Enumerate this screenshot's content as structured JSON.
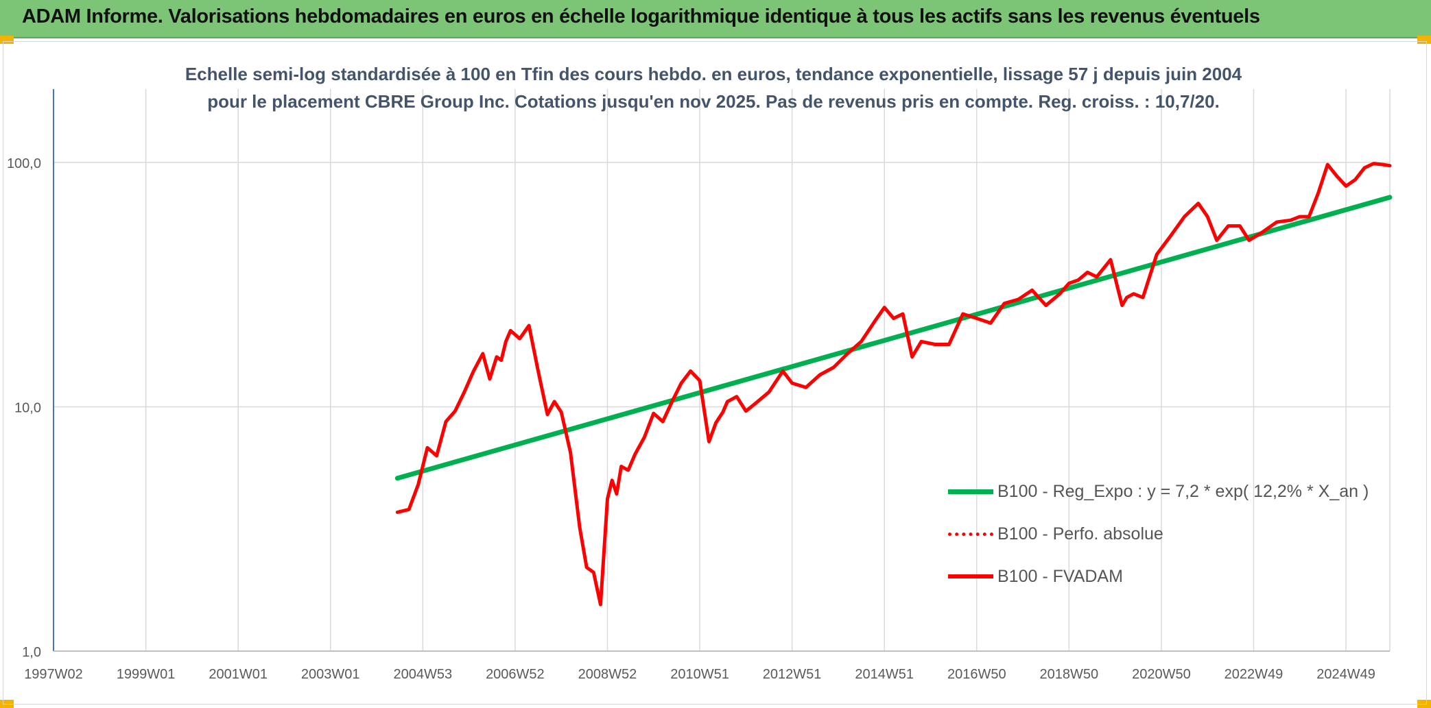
{
  "header": {
    "title": "ADAM Informe. Valorisations hebdomadaires en euros en échelle logarithmique identique à tous les actifs sans les revenus éventuels"
  },
  "chart_data": {
    "type": "line",
    "subtitle": "Echelle semi-log standardisée à 100 en Tfin des cours hebdo. en euros, tendance exponentielle, lissage 57 j depuis juin 2004 pour le placement CBRE Group Inc. Cotations jusqu'en nov 2025. Pas de revenus pris en compte. Reg. croiss. : 10,7/20.",
    "y_scale": "log",
    "ylim": [
      1,
      200
    ],
    "y_tick_values": [
      1,
      10,
      100
    ],
    "y_tick_labels": [
      "1,0",
      "10,0",
      "100,0"
    ],
    "xlim": [
      1997.0,
      2025.95
    ],
    "x_tick_values": [
      1997.0,
      1999.0,
      2001.0,
      2003.0,
      2005.0,
      2007.0,
      2009.0,
      2011.0,
      2013.0,
      2015.0,
      2017.0,
      2019.0,
      2021.0,
      2023.0,
      2025.0
    ],
    "x_tick_labels": [
      "1997W02",
      "1999W01",
      "2001W01",
      "2003W01",
      "2004W53",
      "2006W52",
      "2008W52",
      "2010W51",
      "2012W51",
      "2014W51",
      "2016W50",
      "2018W50",
      "2020W50",
      "2022W49",
      "2024W49"
    ],
    "grid": true,
    "legend_position": "bottom-right",
    "series": [
      {
        "name": "B100 - Reg_Expo : y = 7,2 * exp( 12,2% *  X_an )",
        "color": "#00b050",
        "style": "solid",
        "x": [
          2004.45,
          2025.95
        ],
        "y": [
          5.1,
          72
        ]
      },
      {
        "name": "B100 - Perfo. absolue",
        "color": "#ff0000",
        "style": "dotted",
        "x": [],
        "y": []
      },
      {
        "name": "B100 - FVADAM",
        "color": "#ff0000",
        "style": "solid",
        "x": [
          2004.45,
          2004.7,
          2004.9,
          2005.1,
          2005.3,
          2005.5,
          2005.7,
          2005.9,
          2006.1,
          2006.3,
          2006.45,
          2006.6,
          2006.7,
          2006.8,
          2006.9,
          2007.1,
          2007.3,
          2007.5,
          2007.7,
          2007.85,
          2008.0,
          2008.2,
          2008.4,
          2008.55,
          2008.7,
          2008.85,
          2009.0,
          2009.1,
          2009.2,
          2009.3,
          2009.45,
          2009.6,
          2009.8,
          2010.0,
          2010.2,
          2010.4,
          2010.6,
          2010.8,
          2011.0,
          2011.2,
          2011.35,
          2011.5,
          2011.6,
          2011.8,
          2012.0,
          2012.2,
          2012.5,
          2012.8,
          2013.0,
          2013.3,
          2013.6,
          2013.9,
          2014.2,
          2014.5,
          2014.8,
          2015.0,
          2015.2,
          2015.4,
          2015.6,
          2015.8,
          2016.1,
          2016.4,
          2016.7,
          2017.0,
          2017.3,
          2017.6,
          2017.9,
          2018.2,
          2018.5,
          2018.8,
          2019.0,
          2019.2,
          2019.4,
          2019.6,
          2019.9,
          2020.15,
          2020.25,
          2020.4,
          2020.6,
          2020.9,
          2021.2,
          2021.5,
          2021.8,
          2022.0,
          2022.2,
          2022.45,
          2022.7,
          2022.9,
          2023.2,
          2023.5,
          2023.8,
          2024.0,
          2024.2,
          2024.4,
          2024.6,
          2024.8,
          2025.0,
          2025.2,
          2025.4,
          2025.6,
          2025.8,
          2025.95
        ],
        "y": [
          3.7,
          3.8,
          4.8,
          6.8,
          6.3,
          8.7,
          9.6,
          11.5,
          14.0,
          16.5,
          13.0,
          16.0,
          15.5,
          18.5,
          20.5,
          19.0,
          21.5,
          14.0,
          9.3,
          10.5,
          9.5,
          6.5,
          3.2,
          2.2,
          2.1,
          1.55,
          4.2,
          5.0,
          4.4,
          5.7,
          5.5,
          6.4,
          7.5,
          9.4,
          8.7,
          10.5,
          12.5,
          14.0,
          12.8,
          7.2,
          8.6,
          9.5,
          10.5,
          11.0,
          9.6,
          10.3,
          11.5,
          14.0,
          12.5,
          12.0,
          13.5,
          14.5,
          16.5,
          18.5,
          22.5,
          25.5,
          23.0,
          24.0,
          16.0,
          18.5,
          18.0,
          18.0,
          24.0,
          23.0,
          22.0,
          26.5,
          27.5,
          30.0,
          26.0,
          29.0,
          32.0,
          33.0,
          35.5,
          34.0,
          40.0,
          26.0,
          28.0,
          29.0,
          28.0,
          42.0,
          50.0,
          60.0,
          68.0,
          60.0,
          48.0,
          55.0,
          55.0,
          48.0,
          52.0,
          57.0,
          58.0,
          60.0,
          60.0,
          75.0,
          98.0,
          88.0,
          80.0,
          85.0,
          95.0,
          99.0,
          98.0,
          97.0
        ]
      }
    ]
  }
}
